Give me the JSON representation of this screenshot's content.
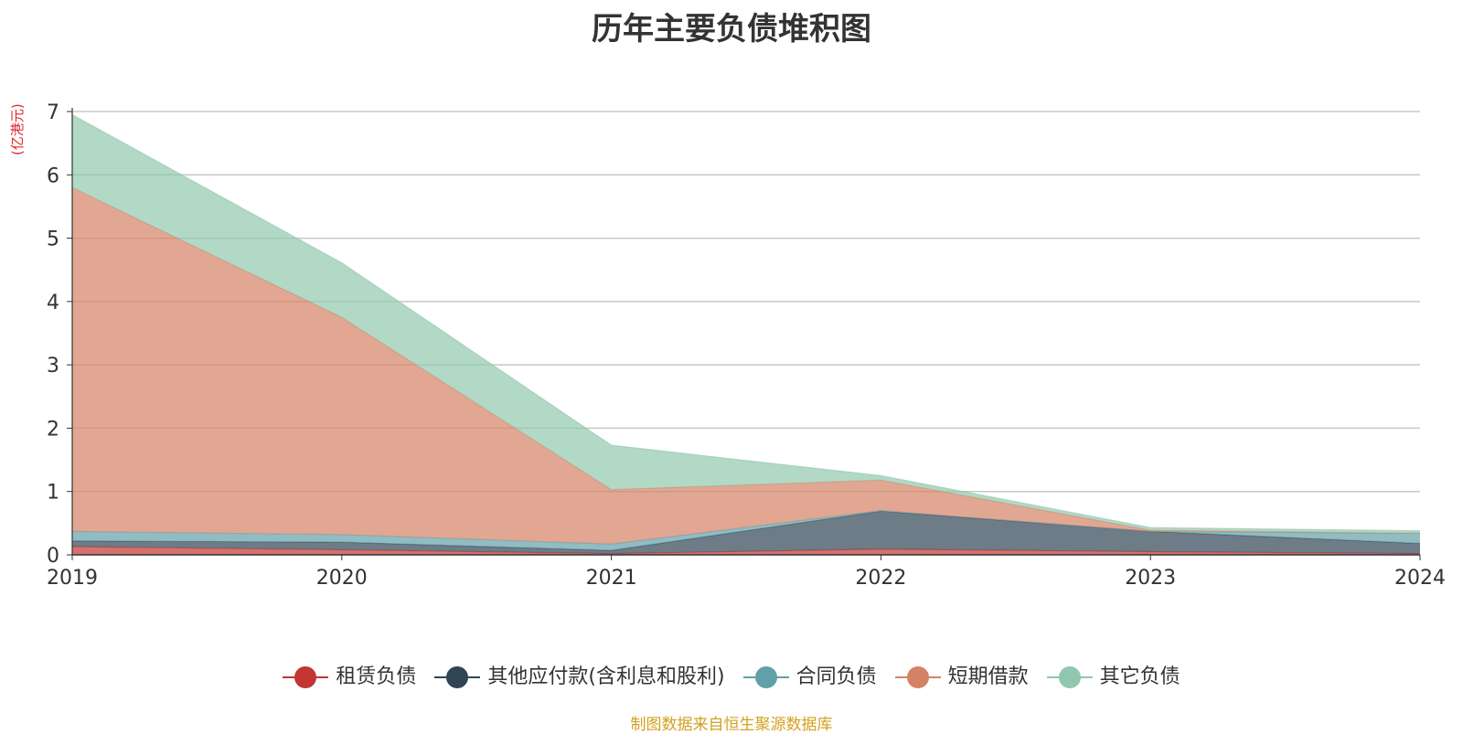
{
  "chart_data": {
    "type": "area",
    "stacked": true,
    "title": "历年主要负债堆积图",
    "unit_label": "(亿港元)",
    "x": [
      "2019",
      "2020",
      "2021",
      "2022",
      "2023",
      "2024"
    ],
    "ylim": [
      0,
      7
    ],
    "yticks": [
      "0",
      "1",
      "2",
      "3",
      "4",
      "5",
      "6",
      "7"
    ],
    "grid": true,
    "legend_position": "bottom",
    "series": [
      {
        "name": "租赁负债",
        "color": "#c23531",
        "values": [
          0.13,
          0.08,
          0.02,
          0.09,
          0.05,
          0.02
        ]
      },
      {
        "name": "其他应付款(含利息和股利)",
        "color": "#2f4554",
        "values": [
          0.09,
          0.12,
          0.05,
          0.6,
          0.32,
          0.16
        ]
      },
      {
        "name": "合同负债",
        "color": "#61a0a8",
        "values": [
          0.15,
          0.12,
          0.1,
          0.01,
          0.0,
          0.16
        ]
      },
      {
        "name": "短期借款",
        "color": "#d48265",
        "values": [
          5.43,
          3.43,
          0.86,
          0.48,
          0.02,
          0.0
        ]
      },
      {
        "name": "其它负债",
        "color": "#91c7ae",
        "values": [
          1.15,
          0.86,
          0.7,
          0.07,
          0.04,
          0.04
        ]
      }
    ],
    "source_note": "制图数据来自恒生聚源数据库"
  }
}
